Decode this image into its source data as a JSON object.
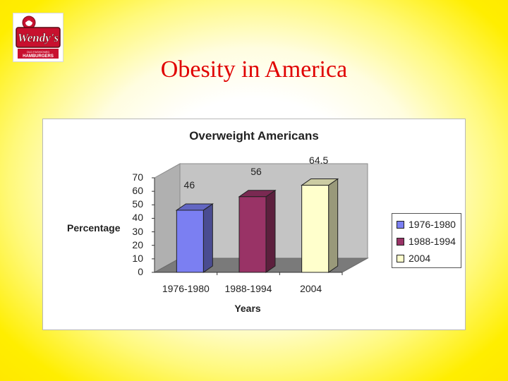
{
  "slide": {
    "title": "Obesity in America",
    "logo_text": "Wendy's",
    "logo_subtext": "OLD FASHIONED HAMBURGERS"
  },
  "colors": {
    "title": "#e00000",
    "background_center": "#ffffff",
    "background_edge": "#ffee00"
  },
  "chart_data": {
    "type": "bar",
    "title": "Overweight Americans",
    "xlabel": "Years",
    "ylabel": "Percentage",
    "categories": [
      "1976-1980",
      "1988-1994",
      "2004"
    ],
    "values": [
      46,
      56,
      64.5
    ],
    "value_labels": [
      "46",
      "56",
      "64.5"
    ],
    "colors": [
      "#7b7ff2",
      "#993366",
      "#ffffcc"
    ],
    "ylim": [
      0,
      70
    ],
    "yticks": [
      "0",
      "10",
      "20",
      "30",
      "40",
      "50",
      "60",
      "70"
    ],
    "legend": [
      "1976-1980",
      "1988-1994",
      "2004"
    ],
    "legend_position": "right",
    "style": "3d-bar",
    "grid": false
  }
}
